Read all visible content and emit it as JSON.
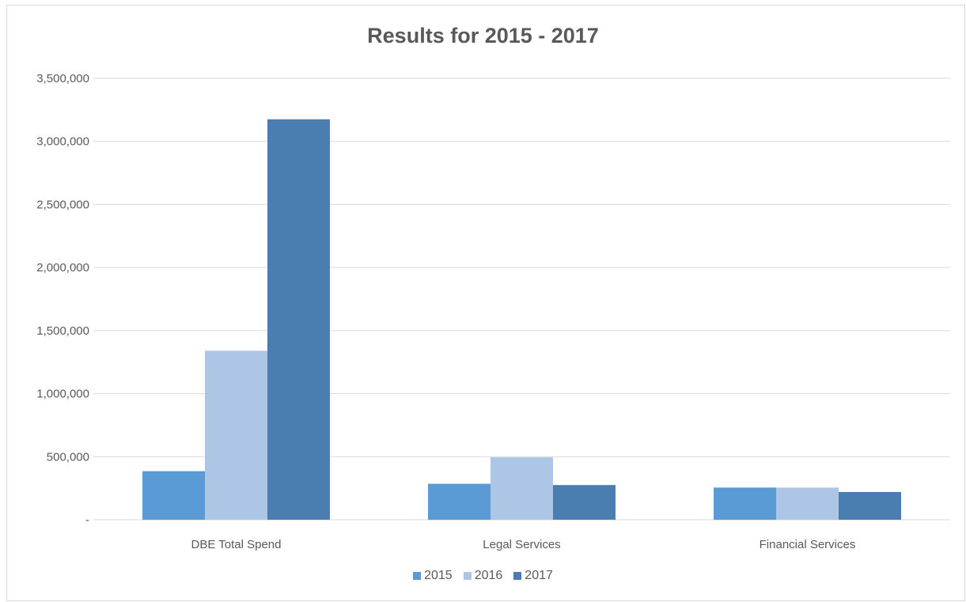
{
  "chart_data": {
    "type": "bar",
    "title": "Results for 2015 - 2017",
    "categories": [
      "DBE Total Spend",
      "Legal Services",
      "Financial Services"
    ],
    "series": [
      {
        "name": "2015",
        "color": "#5b9bd5",
        "values": [
          385000,
          285000,
          255000
        ]
      },
      {
        "name": "2016",
        "color": "#adc6e5",
        "values": [
          1340000,
          495000,
          255000
        ]
      },
      {
        "name": "2017",
        "color": "#4a7eb0",
        "values": [
          3175000,
          275000,
          220000
        ]
      }
    ],
    "ylim": [
      0,
      3500000
    ],
    "yticks": [
      0,
      500000,
      1000000,
      1500000,
      2000000,
      2500000,
      3000000,
      3500000
    ],
    "ytick_labels": [
      "-",
      "500,000",
      "1,000,000",
      "1,500,000",
      "2,000,000",
      "2,500,000",
      "3,000,000",
      "3,500,000"
    ],
    "xlabel": "",
    "ylabel": "",
    "grid": true,
    "legend_position": "bottom"
  }
}
